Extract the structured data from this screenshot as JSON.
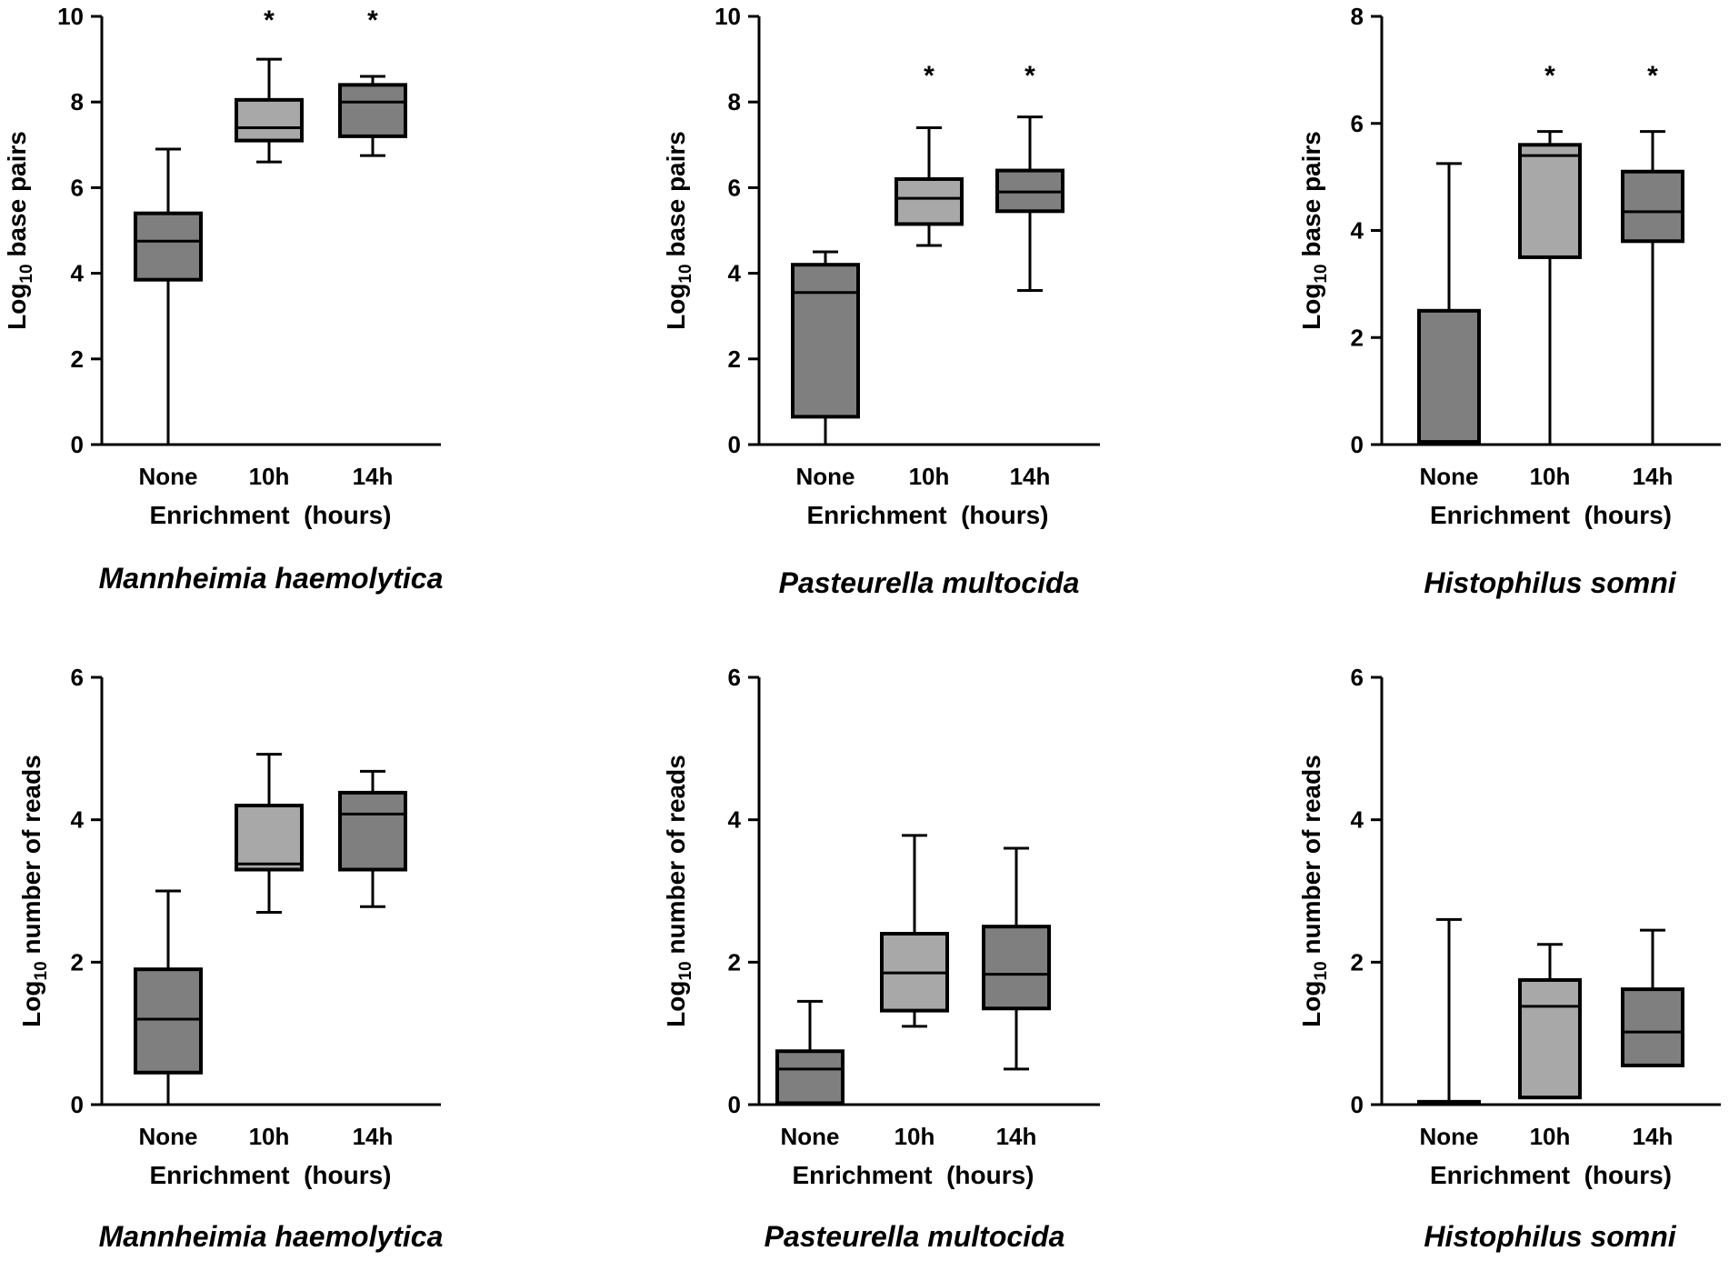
{
  "chart_data": [
    {
      "type": "box",
      "panel": "top-left",
      "species": "Mannheimia haemolytica",
      "ylabel": {
        "prefix": "Log",
        "subscript": "10",
        "suffix": " base pairs"
      },
      "xlabel": "Enrichment  (hours)",
      "ylim": [
        0,
        10
      ],
      "yticks": [
        0,
        2,
        4,
        6,
        8,
        10
      ],
      "categories": [
        "None",
        "10h",
        "14h"
      ],
      "boxes": [
        {
          "min": 0,
          "q1": 3.85,
          "median": 4.75,
          "q3": 5.4,
          "max": 6.9,
          "color": "#7f7f7f"
        },
        {
          "min": 6.6,
          "q1": 7.1,
          "median": 7.4,
          "q3": 8.05,
          "max": 9.0,
          "color": "#a8a8a8"
        },
        {
          "min": 6.75,
          "q1": 7.2,
          "median": 8.0,
          "q3": 8.4,
          "max": 8.6,
          "color": "#7f7f7f"
        }
      ],
      "significance": [
        "",
        "*",
        "*"
      ]
    },
    {
      "type": "box",
      "panel": "top-middle",
      "species": "Pasteurella multocida",
      "ylabel": {
        "prefix": "Log",
        "subscript": "10",
        "suffix": " base pairs"
      },
      "xlabel": "Enrichment  (hours)",
      "ylim": [
        0,
        10
      ],
      "yticks": [
        0,
        2,
        4,
        6,
        8,
        10
      ],
      "categories": [
        "None",
        "10h",
        "14h"
      ],
      "boxes": [
        {
          "min": 0,
          "q1": 0.65,
          "median": 3.55,
          "q3": 4.2,
          "max": 4.5,
          "color": "#7f7f7f"
        },
        {
          "min": 4.65,
          "q1": 5.15,
          "median": 5.75,
          "q3": 6.2,
          "max": 7.4,
          "color": "#a8a8a8"
        },
        {
          "min": 3.6,
          "q1": 5.45,
          "median": 5.9,
          "q3": 6.4,
          "max": 7.65,
          "color": "#7f7f7f"
        }
      ],
      "significance": [
        "",
        "*",
        "*"
      ]
    },
    {
      "type": "box",
      "panel": "top-right",
      "species": "Histophilus somni",
      "ylabel": {
        "prefix": "Log",
        "subscript": "10",
        "suffix": " base pairs"
      },
      "xlabel": "Enrichment  (hours)",
      "ylim": [
        0,
        8
      ],
      "yticks": [
        0,
        2,
        4,
        6,
        8
      ],
      "categories": [
        "None",
        "10h",
        "14h"
      ],
      "boxes": [
        {
          "min": 0,
          "q1": 0.05,
          "median": 0.05,
          "q3": 2.5,
          "max": 5.25,
          "color": "#7f7f7f"
        },
        {
          "min": 0,
          "q1": 3.5,
          "median": 5.4,
          "q3": 5.6,
          "max": 5.85,
          "color": "#a8a8a8"
        },
        {
          "min": 0,
          "q1": 3.8,
          "median": 4.35,
          "q3": 5.1,
          "max": 5.85,
          "color": "#7f7f7f"
        }
      ],
      "significance": [
        "",
        "*",
        "*"
      ]
    },
    {
      "type": "box",
      "panel": "bottom-left",
      "species": "Mannheimia haemolytica",
      "ylabel": {
        "prefix": "Log",
        "subscript": "10",
        "suffix": " number of reads"
      },
      "xlabel": "Enrichment  (hours)",
      "ylim": [
        0,
        6
      ],
      "yticks": [
        0,
        2,
        4,
        6
      ],
      "categories": [
        "None",
        "10h",
        "14h"
      ],
      "boxes": [
        {
          "min": 0,
          "q1": 0.45,
          "median": 1.2,
          "q3": 1.9,
          "max": 3.0,
          "color": "#7f7f7f"
        },
        {
          "min": 2.7,
          "q1": 3.3,
          "median": 3.38,
          "q3": 4.2,
          "max": 4.92,
          "color": "#a8a8a8"
        },
        {
          "min": 2.78,
          "q1": 3.3,
          "median": 4.08,
          "q3": 4.38,
          "max": 4.68,
          "color": "#7f7f7f"
        }
      ],
      "significance": [
        "",
        "",
        ""
      ]
    },
    {
      "type": "box",
      "panel": "bottom-middle",
      "species": "Pasteurella multocida",
      "ylabel": {
        "prefix": "Log",
        "subscript": "10",
        "suffix": " number of reads"
      },
      "xlabel": "Enrichment  (hours)",
      "ylim": [
        0,
        6
      ],
      "yticks": [
        0,
        2,
        4,
        6
      ],
      "categories": [
        "None",
        "10h",
        "14h"
      ],
      "boxes": [
        {
          "min": 0,
          "q1": 0.02,
          "median": 0.5,
          "q3": 0.75,
          "max": 1.45,
          "color": "#7f7f7f"
        },
        {
          "min": 1.1,
          "q1": 1.32,
          "median": 1.85,
          "q3": 2.4,
          "max": 3.78,
          "color": "#a8a8a8"
        },
        {
          "min": 0.5,
          "q1": 1.35,
          "median": 1.83,
          "q3": 2.5,
          "max": 3.6,
          "color": "#7f7f7f"
        }
      ],
      "significance": [
        "",
        "",
        ""
      ]
    },
    {
      "type": "box",
      "panel": "bottom-right",
      "species": "Histophilus somni",
      "ylabel": {
        "prefix": "Log",
        "subscript": "10",
        "suffix": " number of reads"
      },
      "xlabel": "Enrichment  (hours)",
      "ylim": [
        0,
        6
      ],
      "yticks": [
        0,
        2,
        4,
        6
      ],
      "categories": [
        "None",
        "10h",
        "14h"
      ],
      "boxes": [
        {
          "min": 0,
          "q1": 0.02,
          "median": 0.02,
          "q3": 0.04,
          "max": 2.6,
          "color": "#7f7f7f"
        },
        {
          "min": 0.1,
          "q1": 0.1,
          "median": 1.38,
          "q3": 1.75,
          "max": 2.25,
          "color": "#a8a8a8"
        },
        {
          "min": 0.55,
          "q1": 0.55,
          "median": 1.02,
          "q3": 1.62,
          "max": 2.45,
          "color": "#7f7f7f"
        }
      ],
      "significance": [
        "",
        "",
        ""
      ]
    }
  ]
}
